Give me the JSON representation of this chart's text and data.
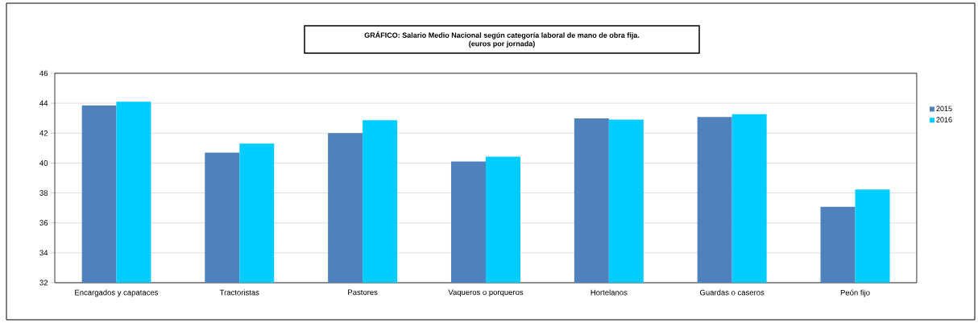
{
  "chart_data": {
    "type": "bar",
    "title": "GRÁFICO: Salario Medio Nacional según categoría laboral de mano de obra fija.",
    "subtitle": "(euros por jornada)",
    "categories": [
      "Encargados y capataces",
      "Tractoristas",
      "Pastores",
      "Vaqueros o porqueros",
      "Hortelanos",
      "Guardas o caseros",
      "Peón fijo"
    ],
    "series": [
      {
        "name": "2015",
        "color": "#4f81bd",
        "values": [
          43.86,
          40.7,
          42.0,
          40.1,
          42.98,
          43.08,
          37.08
        ]
      },
      {
        "name": "2016",
        "color": "#00ccff",
        "values": [
          44.1,
          41.3,
          42.86,
          40.42,
          42.9,
          43.27,
          38.23
        ]
      }
    ],
    "ylim": [
      32,
      46
    ],
    "yticks": [
      32,
      34,
      36,
      38,
      40,
      42,
      44,
      46
    ],
    "grid": "y",
    "legend": "right"
  }
}
